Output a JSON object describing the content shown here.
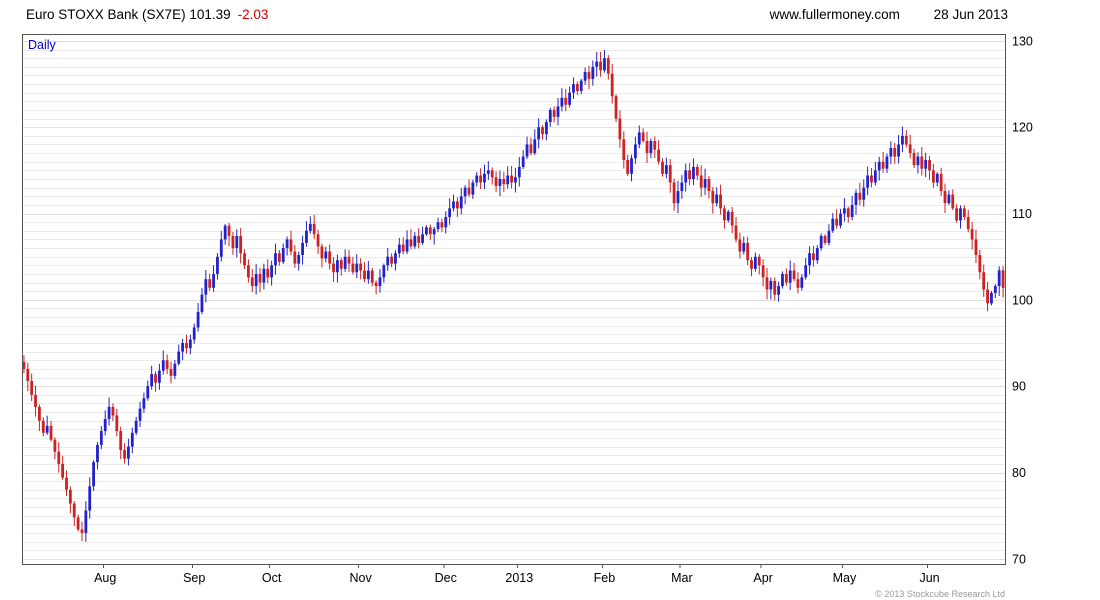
{
  "header": {
    "title": "Euro STOXX Bank (SX7E) 101.39",
    "change": "-2.03",
    "website": "www.fullermoney.com",
    "date": "28 Jun 2013"
  },
  "chart": {
    "mode_label": "Daily",
    "copyright": "© 2013 Stockcube Research Ltd",
    "colors": {
      "up": "#2222cc",
      "down": "#cc2222",
      "grid": "#ececec",
      "grid_major": "#e0e0e0",
      "border": "#555555",
      "axis_text": "#000000"
    }
  },
  "chart_data": {
    "type": "candlestick",
    "title": "Euro STOXX Bank (SX7E)",
    "period": "Daily",
    "last_price": 101.39,
    "change": -2.03,
    "as_of_date": "28 Jun 2013",
    "ylim": [
      70,
      130
    ],
    "y_ticks": [
      70,
      80,
      90,
      100,
      110,
      120,
      130
    ],
    "grid_step": 1,
    "x_ticks": [
      {
        "label": "Aug",
        "index": 21
      },
      {
        "label": "Sep",
        "index": 44
      },
      {
        "label": "Oct",
        "index": 64
      },
      {
        "label": "Nov",
        "index": 87
      },
      {
        "label": "Dec",
        "index": 109
      },
      {
        "label": "2013",
        "index": 128
      },
      {
        "label": "Feb",
        "index": 150
      },
      {
        "label": "Mar",
        "index": 170
      },
      {
        "label": "Apr",
        "index": 191
      },
      {
        "label": "May",
        "index": 212
      },
      {
        "label": "Jun",
        "index": 234
      }
    ],
    "open_first": 92.8,
    "closes": [
      92.0,
      90.6,
      89.0,
      87.6,
      86.0,
      84.6,
      85.4,
      83.8,
      82.4,
      81.0,
      79.4,
      78.0,
      76.4,
      74.8,
      73.4,
      73.0,
      75.6,
      78.4,
      81.2,
      83.2,
      84.8,
      86.2,
      87.6,
      86.6,
      84.8,
      82.6,
      81.6,
      83.0,
      84.6,
      86.0,
      87.4,
      88.6,
      90.0,
      91.4,
      90.4,
      91.8,
      93.0,
      92.0,
      91.2,
      92.6,
      94.0,
      95.0,
      94.4,
      95.4,
      96.8,
      98.6,
      100.6,
      102.4,
      101.4,
      103.0,
      105.0,
      107.0,
      108.6,
      107.4,
      106.0,
      107.4,
      105.4,
      104.0,
      102.6,
      101.6,
      103.0,
      102.0,
      103.6,
      102.6,
      104.0,
      105.4,
      104.4,
      106.0,
      107.0,
      105.6,
      104.2,
      105.2,
      106.6,
      108.0,
      108.8,
      107.6,
      106.2,
      104.8,
      105.6,
      104.2,
      103.2,
      104.6,
      103.6,
      105.0,
      104.2,
      103.2,
      104.2,
      103.4,
      102.4,
      103.4,
      102.0,
      101.6,
      102.6,
      104.0,
      105.0,
      104.2,
      105.4,
      106.4,
      105.6,
      107.0,
      106.2,
      107.4,
      106.6,
      107.6,
      108.4,
      107.6,
      108.2,
      109.0,
      108.4,
      109.6,
      110.6,
      111.4,
      110.6,
      112.0,
      113.0,
      112.2,
      113.6,
      114.4,
      113.6,
      114.6,
      115.0,
      114.2,
      113.2,
      114.0,
      113.4,
      114.4,
      113.6,
      114.2,
      115.4,
      116.6,
      118.0,
      117.0,
      118.6,
      120.0,
      119.2,
      120.6,
      122.0,
      121.2,
      122.4,
      123.4,
      122.6,
      124.0,
      125.0,
      124.2,
      125.4,
      126.4,
      125.6,
      127.0,
      127.6,
      126.6,
      128.0,
      126.2,
      123.6,
      121.0,
      118.6,
      116.2,
      114.6,
      116.4,
      118.0,
      119.4,
      118.4,
      117.0,
      118.4,
      117.4,
      116.0,
      114.6,
      115.6,
      113.6,
      111.2,
      112.6,
      113.6,
      115.0,
      114.0,
      115.4,
      114.4,
      113.0,
      114.0,
      112.6,
      111.2,
      112.2,
      110.6,
      109.2,
      110.2,
      108.6,
      107.0,
      105.6,
      106.6,
      104.6,
      103.6,
      105.0,
      104.0,
      102.6,
      101.2,
      102.2,
      100.6,
      101.6,
      103.0,
      102.0,
      103.4,
      102.4,
      101.4,
      102.6,
      104.0,
      105.4,
      104.6,
      106.0,
      107.4,
      106.6,
      108.0,
      109.4,
      108.6,
      110.0,
      110.6,
      109.6,
      111.0,
      112.4,
      111.6,
      113.0,
      114.4,
      113.6,
      115.0,
      116.0,
      115.2,
      116.6,
      117.6,
      116.6,
      118.0,
      119.0,
      118.0,
      117.0,
      115.6,
      116.6,
      115.2,
      116.2,
      115.0,
      113.6,
      114.6,
      112.6,
      111.2,
      112.2,
      110.6,
      109.2,
      110.6,
      109.6,
      108.2,
      107.0,
      105.2,
      103.2,
      101.2,
      99.6,
      100.8,
      101.6,
      103.42,
      101.39
    ]
  }
}
